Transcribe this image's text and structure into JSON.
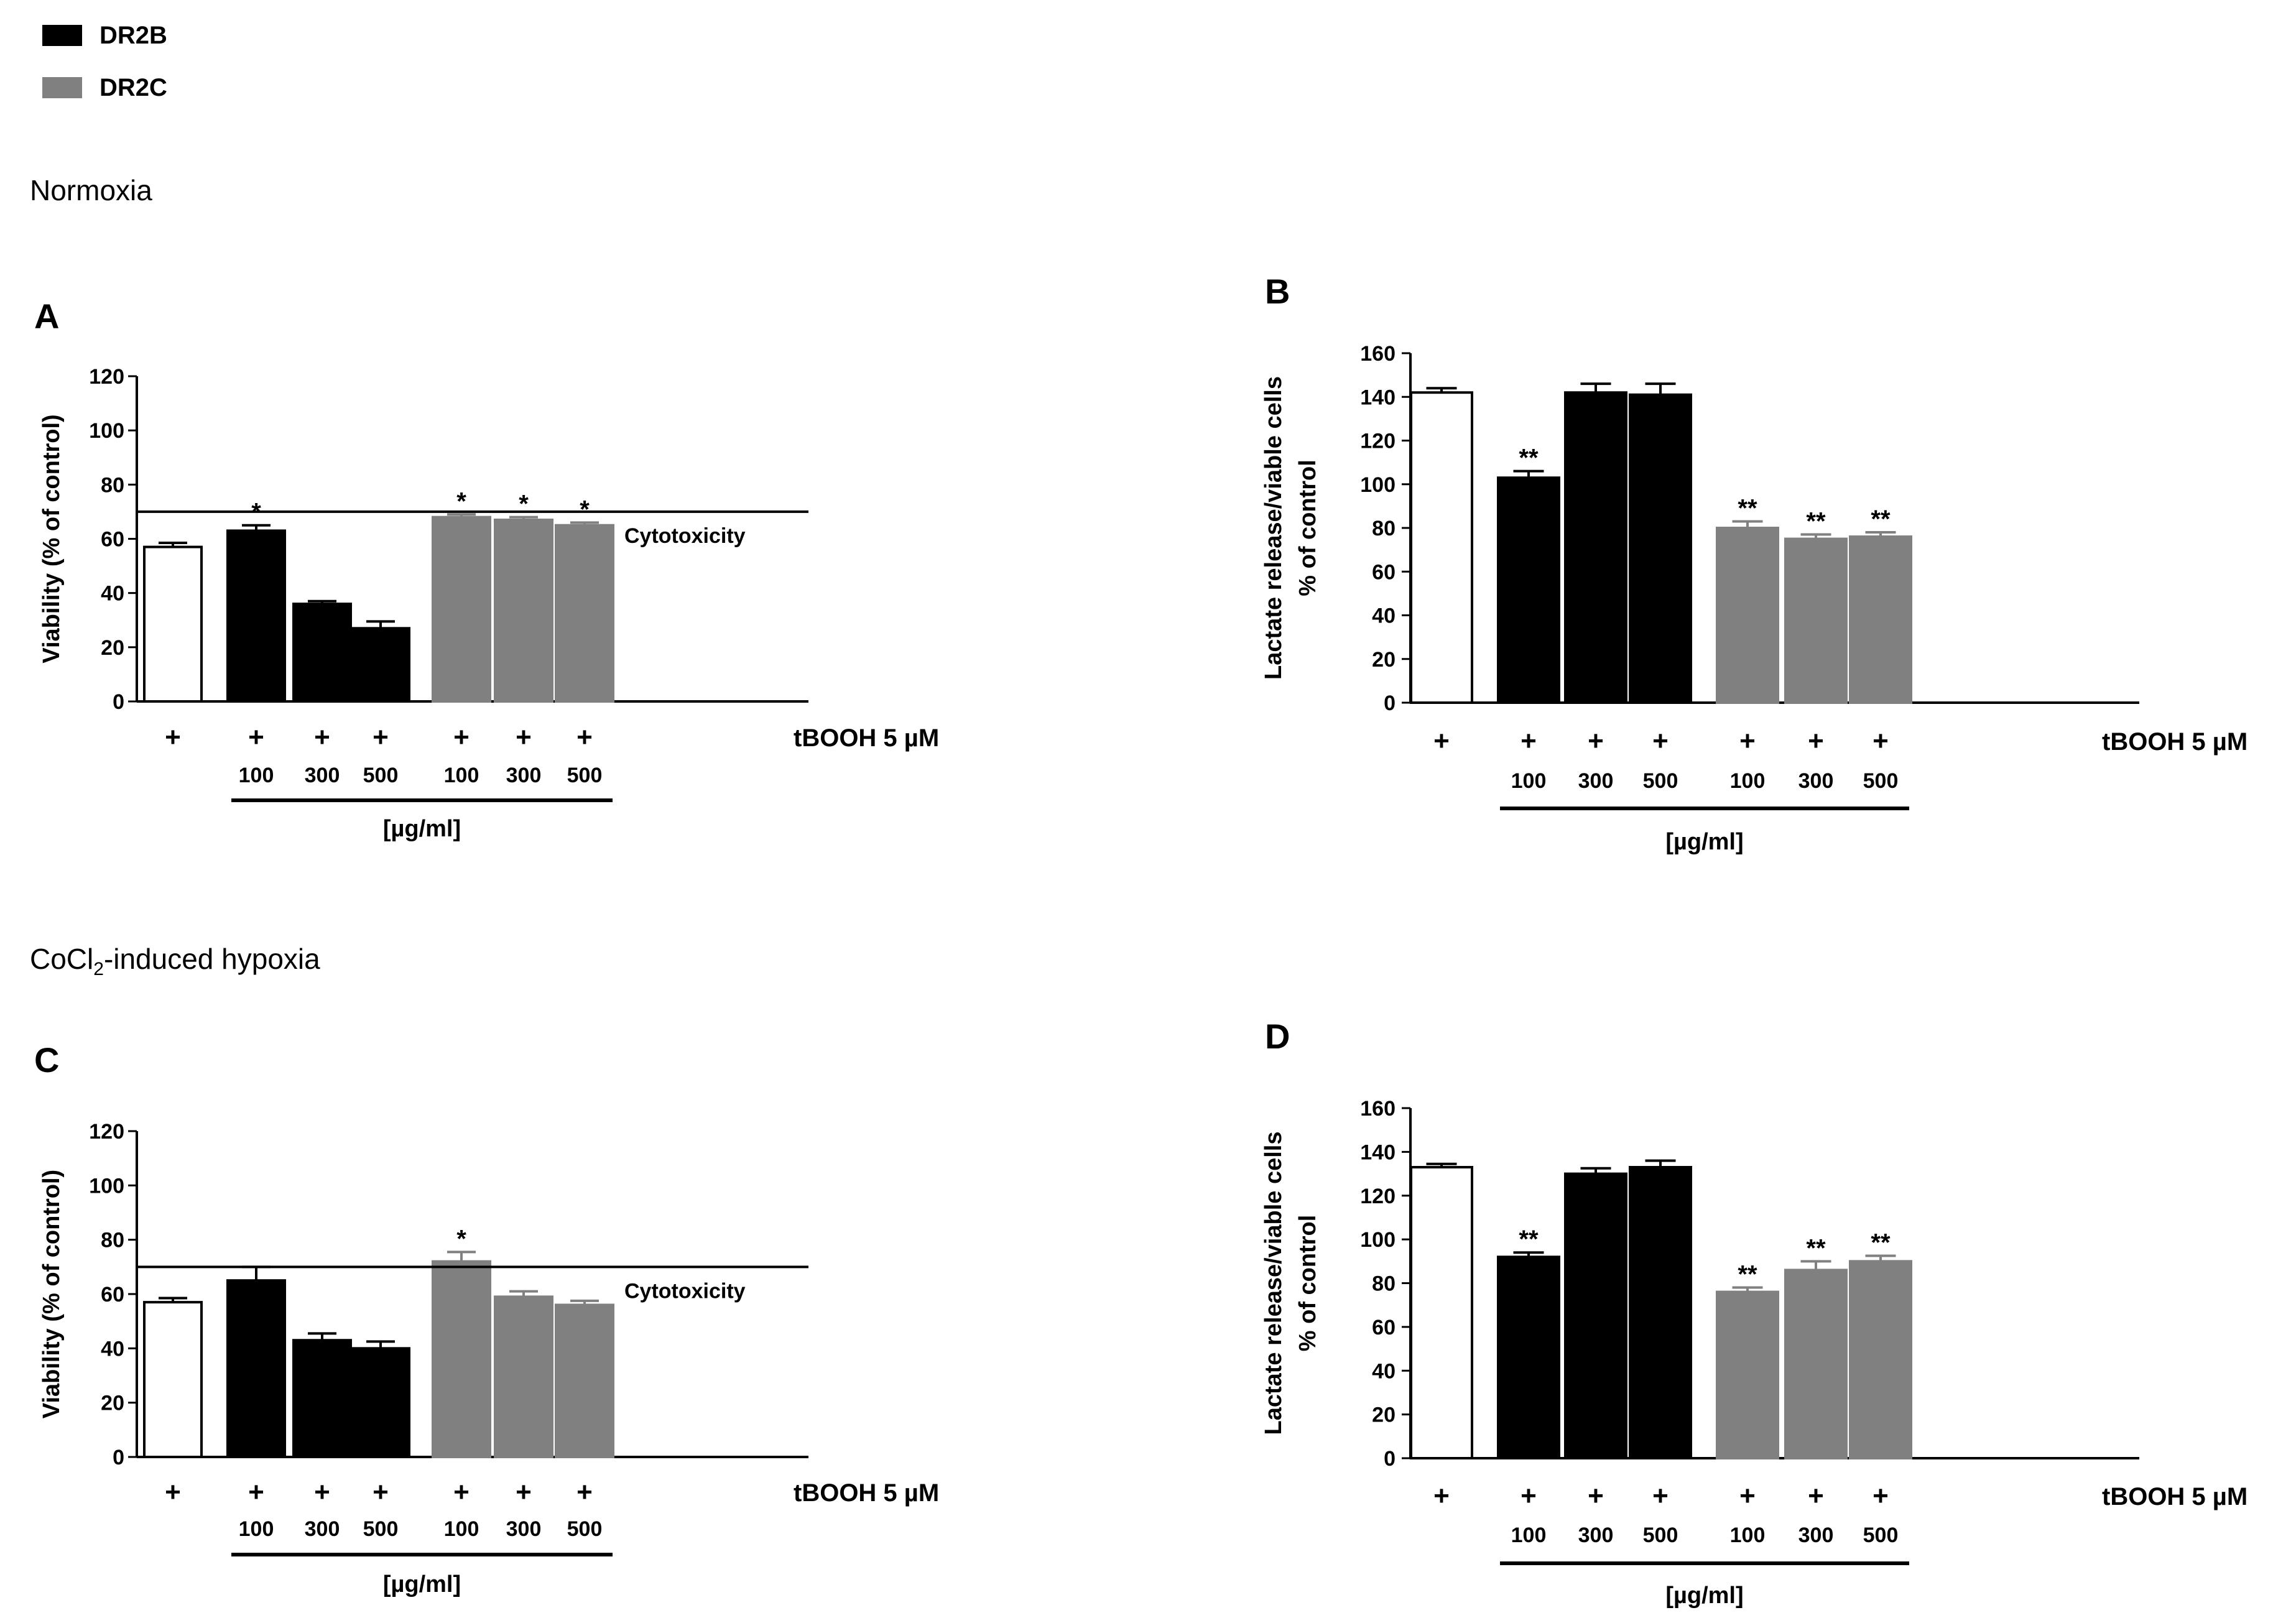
{
  "legend": [
    {
      "label": "DR2B",
      "color": "#000000"
    },
    {
      "label": "DR2C",
      "color": "#808080"
    }
  ],
  "sections": {
    "normoxia": "Normoxia",
    "hypoxia_prefix": "CoCl",
    "hypoxia_sub": "2",
    "hypoxia_suffix": "-induced hypoxia"
  },
  "colors": {
    "control": "#ffffff",
    "dr2b": "#000000",
    "dr2c": "#808080",
    "axis": "#000000"
  },
  "chart_data": [
    {
      "id": "A",
      "type": "bar",
      "title": "A",
      "ylabel": "Viability (% of control)",
      "ylim": [
        0,
        120
      ],
      "yticks": [
        0,
        20,
        40,
        60,
        80,
        100,
        120
      ],
      "treatment": "tBOOH 5 µM",
      "unit": "[µg/ml]",
      "categories": [
        "tBOOH",
        "DR2B 100",
        "DR2B 300",
        "DR2B 500",
        "DR2C 100",
        "DR2C 300",
        "DR2C 500"
      ],
      "groups": [
        "control",
        "dr2b",
        "dr2b",
        "dr2b",
        "dr2c",
        "dr2c",
        "dr2c"
      ],
      "plus": [
        "+",
        "+",
        "+",
        "+",
        "+",
        "+",
        "+"
      ],
      "concentrations": [
        "",
        "100",
        "300",
        "500",
        "100",
        "300",
        "500"
      ],
      "values": [
        57,
        63,
        36,
        27,
        68,
        67,
        65
      ],
      "errors": [
        1.5,
        2,
        1,
        2.5,
        1,
        1,
        1
      ],
      "significance": [
        "",
        "*",
        "",
        "",
        "*",
        "*",
        "*"
      ],
      "reference_line": {
        "value": 70,
        "label": "Cytotoxicity"
      }
    },
    {
      "id": "B",
      "type": "bar",
      "title": "B",
      "ylabel": "Lactate release/viable cells",
      "ylabel2": "% of control",
      "ylim": [
        0,
        160
      ],
      "yticks": [
        0,
        20,
        40,
        60,
        80,
        100,
        120,
        140,
        160
      ],
      "treatment": "tBOOH 5 µM",
      "unit": "[µg/ml]",
      "categories": [
        "tBOOH",
        "DR2B 100",
        "DR2B 300",
        "DR2B 500",
        "DR2C 100",
        "DR2C 300",
        "DR2C 500"
      ],
      "groups": [
        "control",
        "dr2b",
        "dr2b",
        "dr2b",
        "dr2c",
        "dr2c",
        "dr2c"
      ],
      "plus": [
        "+",
        "+",
        "+",
        "+",
        "+",
        "+",
        "+"
      ],
      "concentrations": [
        "",
        "100",
        "300",
        "500",
        "100",
        "300",
        "500"
      ],
      "values": [
        142,
        103,
        142,
        141,
        80,
        75,
        76
      ],
      "errors": [
        2,
        3,
        4,
        5,
        3,
        2,
        2
      ],
      "significance": [
        "",
        "**",
        "",
        "",
        "**",
        "**",
        "**"
      ]
    },
    {
      "id": "C",
      "type": "bar",
      "title": "C",
      "ylabel": "Viability (% of control)",
      "ylim": [
        0,
        120
      ],
      "yticks": [
        0,
        20,
        40,
        60,
        80,
        100,
        120
      ],
      "treatment": "tBOOH 5 µM",
      "unit": "[µg/ml]",
      "categories": [
        "tBOOH",
        "DR2B 100",
        "DR2B 300",
        "DR2B 500",
        "DR2C 100",
        "DR2C 300",
        "DR2C 500"
      ],
      "groups": [
        "control",
        "dr2b",
        "dr2b",
        "dr2b",
        "dr2c",
        "dr2c",
        "dr2c"
      ],
      "plus": [
        "+",
        "+",
        "+",
        "+",
        "+",
        "+",
        "+"
      ],
      "concentrations": [
        "",
        "100",
        "300",
        "500",
        "100",
        "300",
        "500"
      ],
      "values": [
        57,
        65,
        43,
        40,
        72,
        59,
        56
      ],
      "errors": [
        1.5,
        5,
        2.5,
        2.5,
        3.5,
        2,
        1.5
      ],
      "significance": [
        "",
        "",
        "",
        "",
        "*",
        "",
        ""
      ],
      "reference_line": {
        "value": 70,
        "label": "Cytotoxicity"
      }
    },
    {
      "id": "D",
      "type": "bar",
      "title": "D",
      "ylabel": "Lactate release/viable cells",
      "ylabel2": "% of control",
      "ylim": [
        0,
        160
      ],
      "yticks": [
        0,
        20,
        40,
        60,
        80,
        100,
        120,
        140,
        160
      ],
      "treatment": "tBOOH 5 µM",
      "unit": "[µg/ml]",
      "categories": [
        "tBOOH",
        "DR2B 100",
        "DR2B 300",
        "DR2B 500",
        "DR2C 100",
        "DR2C 300",
        "DR2C 500"
      ],
      "groups": [
        "control",
        "dr2b",
        "dr2b",
        "dr2b",
        "dr2c",
        "dr2c",
        "dr2c"
      ],
      "plus": [
        "+",
        "+",
        "+",
        "+",
        "+",
        "+",
        "+"
      ],
      "concentrations": [
        "",
        "100",
        "300",
        "500",
        "100",
        "300",
        "500"
      ],
      "values": [
        133,
        92,
        130,
        133,
        76,
        86,
        90
      ],
      "errors": [
        1.5,
        2,
        2.5,
        3,
        2,
        4,
        2.5
      ],
      "significance": [
        "",
        "**",
        "",
        "",
        "**",
        "**",
        "**"
      ]
    }
  ]
}
